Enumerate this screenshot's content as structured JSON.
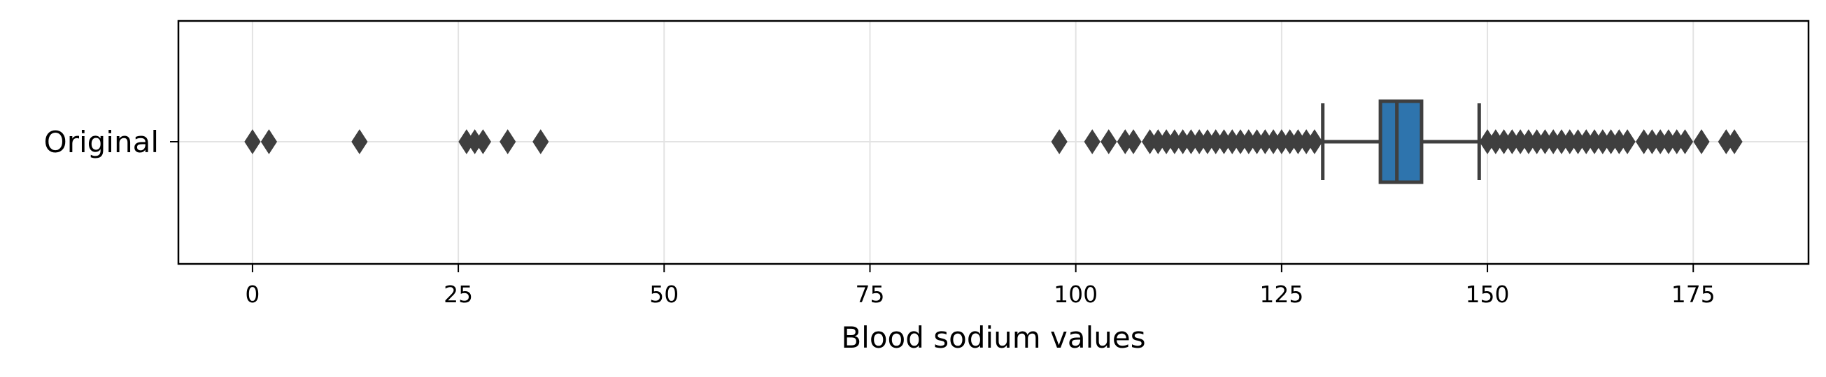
{
  "chart_data": {
    "type": "boxplot",
    "orientation": "horizontal",
    "title": "",
    "xlabel": "Blood sodium values",
    "ylabel": "",
    "xlim": [
      -9,
      189
    ],
    "xticks": [
      0,
      25,
      50,
      75,
      100,
      125,
      150,
      175
    ],
    "xtick_labels": [
      "0",
      "25",
      "50",
      "75",
      "100",
      "125",
      "150",
      "175"
    ],
    "grid": true,
    "legend": "none",
    "categories": [
      "Original"
    ],
    "box_color": "#2e74ad",
    "line_color": "#3f3f3f",
    "boxes": [
      {
        "category": "Original",
        "whisker_low": 130,
        "q1": 137,
        "median": 139,
        "q3": 142,
        "whisker_high": 149,
        "outliers": [
          0,
          2,
          13,
          26,
          27,
          28,
          31,
          35,
          98,
          102,
          104,
          106,
          107,
          109,
          110,
          111,
          112,
          113,
          114,
          115,
          116,
          117,
          118,
          119,
          120,
          121,
          122,
          123,
          124,
          125,
          126,
          127,
          128,
          129,
          150,
          151,
          152,
          153,
          154,
          155,
          156,
          157,
          158,
          159,
          160,
          161,
          162,
          163,
          164,
          165,
          166,
          167,
          169,
          170,
          171,
          172,
          173,
          174,
          176,
          179,
          180
        ]
      }
    ]
  }
}
